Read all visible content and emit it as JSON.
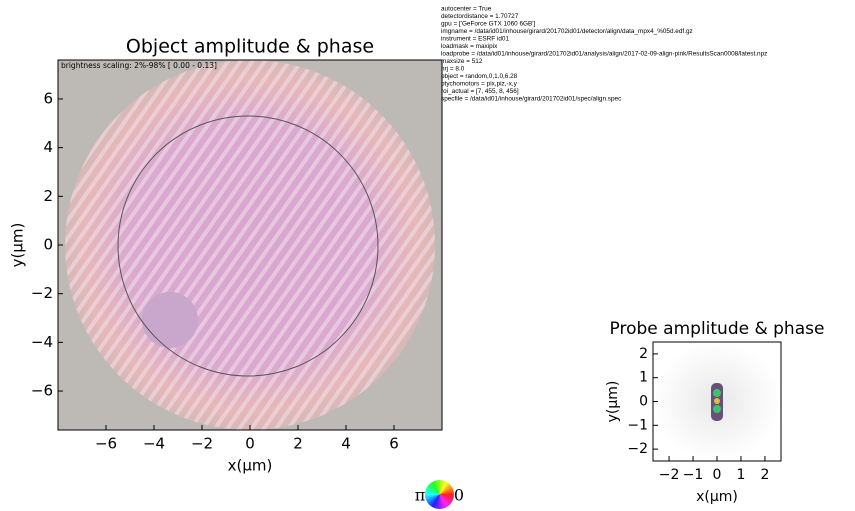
{
  "params": [
    "autocenter = True",
    "detectordistance = 1.70727",
    "gpu = ['GeForce GTX 1060 6GB']",
    "imgname = /data/id01/inhouse/girard/201702id01/detector/align/data_mpx4_%05d.edf.gz",
    "instrument = ESRF id01",
    "loadmask = maxipix",
    "loadprobe = /data/id01/inhouse/girard/201702id01/analysis/align/2017-02-09-align-pink/ResultsScan0008/latest.npz",
    "maxsize = 512",
    "nrj = 8.0",
    "object = random,0,1,0,6.28",
    "ptychomotors = pix,piz,-x,y",
    "roi_actual = [7, 455, 8, 456]",
    "specfile = /data/id01/inhouse/girard/201702id01/spec/align.spec"
  ],
  "colorwheel": {
    "left": "π",
    "right": "0"
  },
  "chart_data": [
    {
      "type": "image",
      "title": "Object amplitude & phase",
      "annotation": "brightness scaling: 2%-98% [ 0.00 - 0.13]",
      "xlabel": "x(μm)",
      "ylabel": "y(μm)",
      "xlim": [
        -8,
        8
      ],
      "ylim": [
        -7.6,
        7.6
      ],
      "xticks": [
        {
          "value": -6,
          "label": "−6"
        },
        {
          "value": -4,
          "label": "−4"
        },
        {
          "value": -2,
          "label": "−2"
        },
        0,
        2,
        4,
        6
      ],
      "yticks": [
        {
          "value": -6,
          "label": "−6"
        },
        {
          "value": -4,
          "label": "−4"
        },
        {
          "value": -2,
          "label": "−2"
        },
        0,
        2,
        4,
        6
      ]
    },
    {
      "type": "image",
      "title": "Probe amplitude & phase",
      "xlabel": "x(μm)",
      "ylabel": "y(μm)",
      "xlim": [
        -2.67,
        2.67
      ],
      "ylim": [
        -2.5,
        2.5
      ],
      "xticks": [
        {
          "value": -2,
          "label": "−2"
        },
        {
          "value": -1,
          "label": "−1"
        },
        0,
        1,
        2
      ],
      "yticks": [
        {
          "value": -2,
          "label": "−2"
        },
        {
          "value": -1,
          "label": "−1"
        },
        0,
        1,
        2
      ]
    }
  ]
}
